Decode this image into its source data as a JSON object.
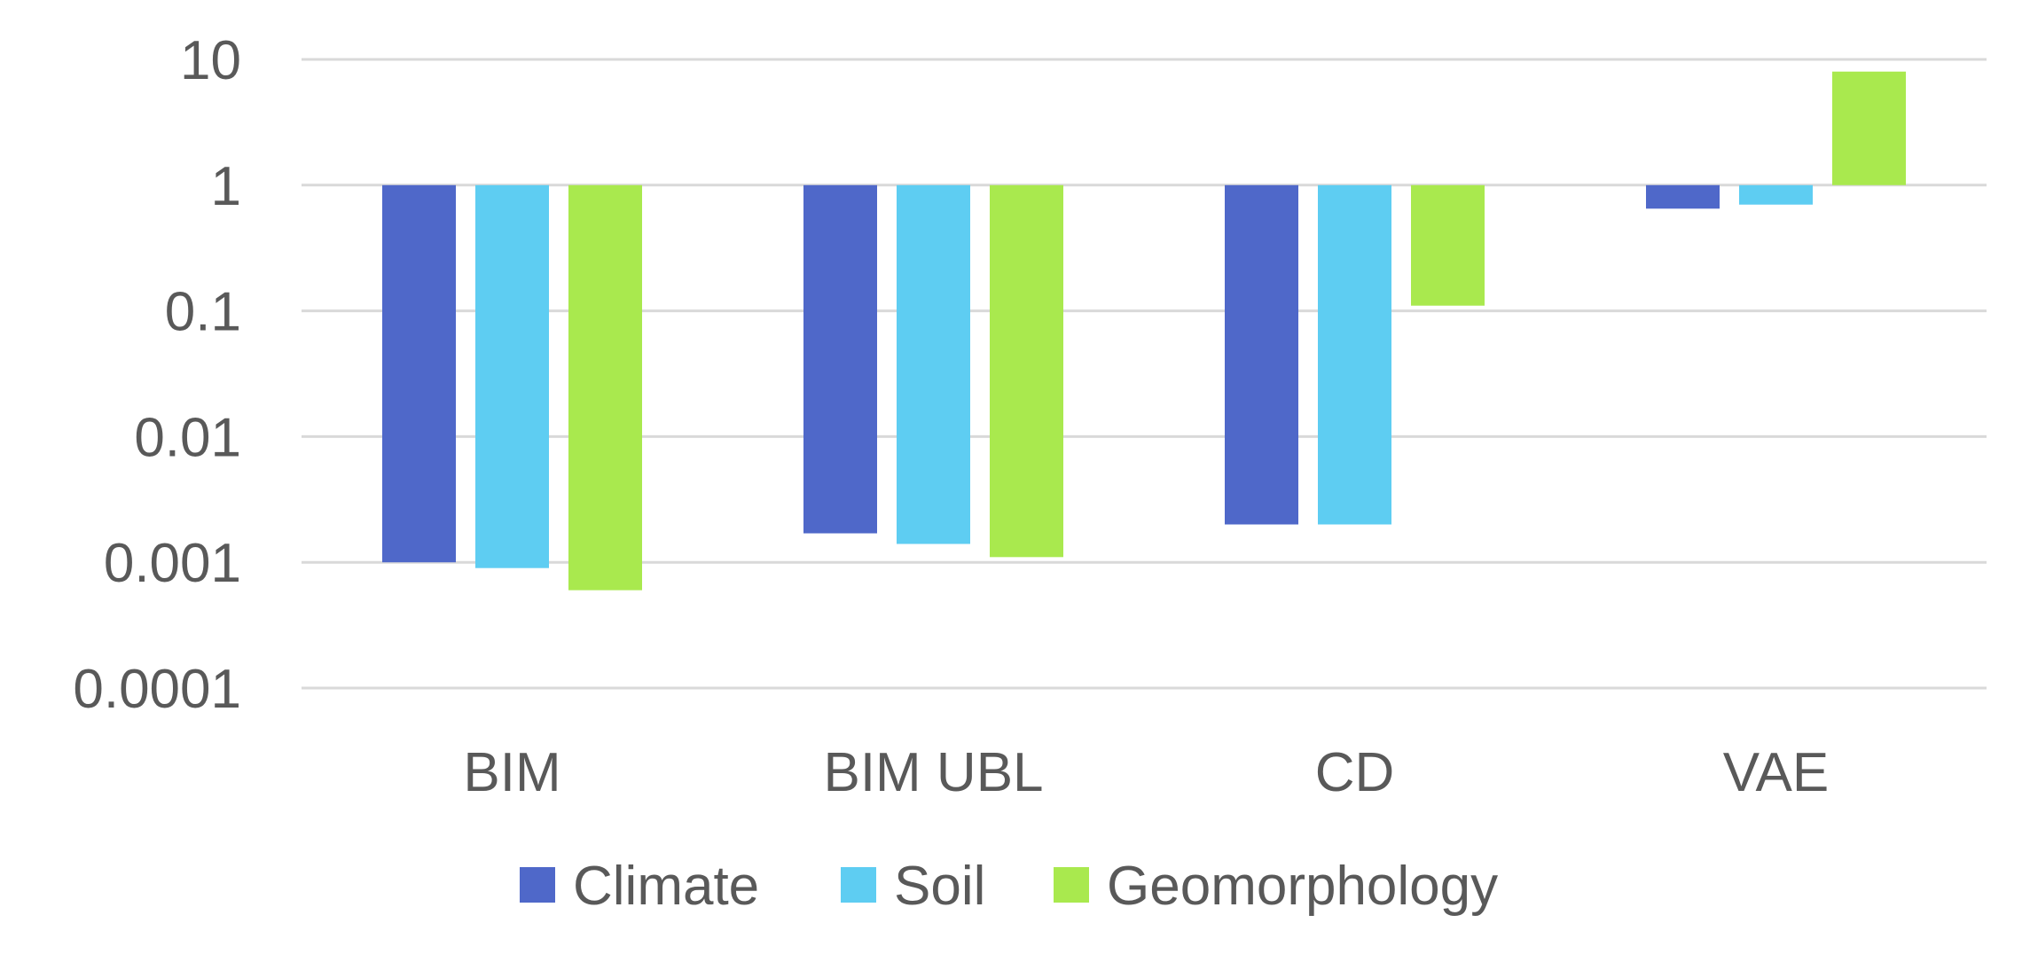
{
  "chart_data": {
    "type": "bar",
    "title": "",
    "xlabel": "",
    "ylabel": "",
    "yscale": "log",
    "ylim": [
      0.0001,
      10
    ],
    "baseline": 1,
    "grid": true,
    "legend_position": "bottom",
    "y_ticks": [
      10,
      1,
      0.1,
      0.01,
      0.001,
      0.0001
    ],
    "y_tick_labels": [
      "10",
      "1",
      "0.1",
      "0.01",
      "0.001",
      "0.0001"
    ],
    "categories": [
      "BIM",
      "BIM UBL",
      "CD",
      "VAE"
    ],
    "series": [
      {
        "name": "Climate",
        "color": "#4f68c9",
        "values": [
          0.001,
          0.0017,
          0.002,
          0.65
        ]
      },
      {
        "name": "Soil",
        "color": "#5ecdf2",
        "values": [
          0.0009,
          0.0014,
          0.002,
          0.7
        ]
      },
      {
        "name": "Geomorphology",
        "color": "#a9e94e",
        "values": [
          0.0006,
          0.0011,
          0.11,
          8
        ]
      }
    ]
  }
}
